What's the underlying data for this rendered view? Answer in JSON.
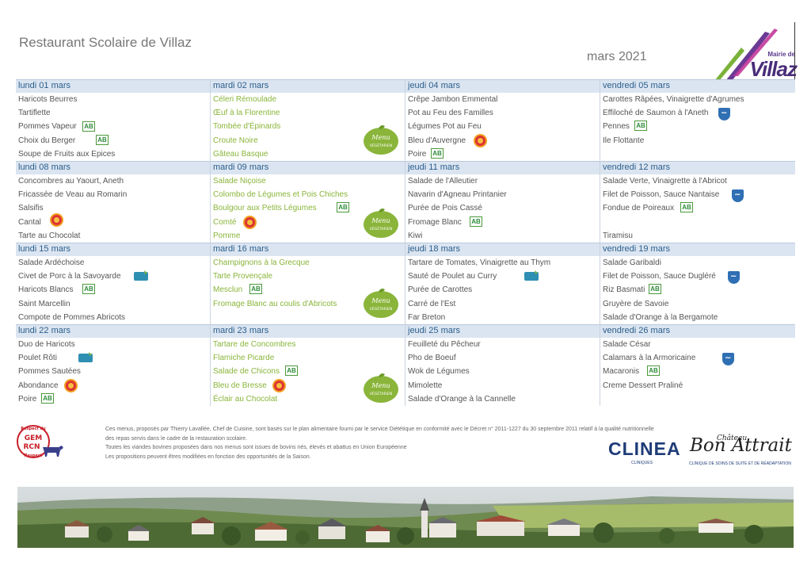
{
  "header": {
    "title": "Restaurant Scolaire de Villaz",
    "month": "mars 2021",
    "logo_mairie": "Mairie de",
    "logo_villaz": "Villaz"
  },
  "weeks": [
    {
      "days": [
        {
          "day": "lundi 01 mars",
          "items": [
            "Haricots Beurres",
            "Tartiflette",
            "Pommes Vapeur",
            "Choix du Berger",
            "Soupe de Fruits aux Epices"
          ]
        },
        {
          "day": "mardi 02 mars",
          "items": [
            "Céleri Rémoulade",
            "Œuf à la Florentine",
            "Tombée d'Épinards",
            "Croute Noire",
            "Gâteau Basque"
          ]
        },
        {
          "day": "jeudi 04 mars",
          "items": [
            "Crêpe Jambon Emmental",
            "Pot au Feu des Familles",
            "Légumes Pot au Feu",
            "Bleu d'Auvergne",
            "Poire"
          ]
        },
        {
          "day": "vendredi 05 mars",
          "items": [
            "Carottes Râpées, Vinaigrette d'Agrumes",
            "Effiloché de Saumon à l'Aneth",
            "Pennes",
            "Ile Flottante",
            ""
          ]
        }
      ]
    },
    {
      "days": [
        {
          "day": "lundi 08 mars",
          "items": [
            "Concombres au Yaourt, Aneth",
            "Fricassée de Veau au Romarin",
            "Salsifis",
            "Cantal",
            "Tarte au Chocolat"
          ]
        },
        {
          "day": "mardi 09 mars",
          "items": [
            "Salade Niçoise",
            "Colombo de Légumes et Pois Chiches",
            "Boulgour aux Petits Légumes",
            "Comté",
            "Pomme"
          ]
        },
        {
          "day": "jeudi 11 mars",
          "items": [
            "Salade de l'Alleutier",
            "Navarin d'Agneau Printanier",
            "Purée de Pois Cassé",
            "Fromage Blanc",
            "Kiwi"
          ]
        },
        {
          "day": "vendredi 12 mars",
          "items": [
            "Salade Verte, Vinaigrette à l'Abricot",
            "Filet de Poisson, Sauce Nantaise",
            "Fondue de Poireaux",
            "",
            "Tiramisu"
          ]
        }
      ]
    },
    {
      "days": [
        {
          "day": "lundi 15 mars",
          "items": [
            "Salade Ardéchoise",
            "Civet de Porc à la Savoyarde",
            "Haricots Blancs",
            "Saint Marcellin",
            "Compote de Pommes Abricots"
          ]
        },
        {
          "day": "mardi 16 mars",
          "items": [
            "Champignons à la Grecque",
            "Tarte Provençale",
            "Mesclun",
            "Fromage Blanc au coulis d'Abricots",
            ""
          ]
        },
        {
          "day": "jeudi 18 mars",
          "items": [
            "Tartare de Tomates, Vinaigrette au Thym",
            "Sauté de Poulet au Curry",
            "Purée de Carottes",
            "Carré de l'Est",
            "Far Breton"
          ]
        },
        {
          "day": "vendredi 19 mars",
          "items": [
            "Salade Garibaldi",
            "Filet de Poisson, Sauce Dugléré",
            "Riz Basmati",
            "Gruyère de Savoie",
            "Salade d'Orange à la Bergamote"
          ]
        }
      ]
    },
    {
      "days": [
        {
          "day": "lundi 22 mars",
          "items": [
            "Duo de Haricots",
            "Poulet Rôti",
            "Pommes Sautées",
            "Abondance",
            "Poire"
          ]
        },
        {
          "day": "mardi 23 mars",
          "items": [
            "Tartare de Concombres",
            "Flamiche Picarde",
            "Salade de Chicons",
            "Bleu de Bresse",
            "Éclair au Chocolat"
          ]
        },
        {
          "day": "jeudi 25 mars",
          "items": [
            "Feuilleté du Pêcheur",
            "Pho de Boeuf",
            "Wok de Légumes",
            "Mimolette",
            "Salade d'Orange à la Cannelle"
          ]
        },
        {
          "day": "vendredi 26 mars",
          "items": [
            "Salade César",
            "Calamars à la Armoricaine",
            "Macaronis",
            "Creme Dessert Praliné",
            ""
          ]
        }
      ]
    }
  ],
  "badges": {
    "bio": "AB",
    "veg_line1": "Menu",
    "veg_line2": "VÉGÉTARIEN"
  },
  "footnote": {
    "line1": "Ces menus, proposés par Thierry Lavallée, Chef de Cuisine, sont basés sur le plan alimentaire fourni par le service Diététique en conformité avec le Décret n° 2011-1227 du 30 septembre 2011 relatif à la qualité nutritionnelle",
    "line2": "des repas servis dans le cadre de la restauration scolaire.",
    "line3": "Toutes les viandes bovines proposées dans nos menus sont issues de bovins nés, élevés et abattus en Union Européenne",
    "line4": "Les propositions peuvent êtres modifiées en fonction des opportunités de la Saison."
  },
  "logos": {
    "gem_top": "Respect du",
    "gem_mid1": "GEM",
    "gem_mid2": "RCN",
    "gem_bottom": "Respect",
    "clinea": "CLINEA",
    "clinea_sub": "CLINIQUES",
    "chateau_small": "Château",
    "chateau": "Bon Attrait",
    "chateau_sub": "CLINIQUE DE SOINS DE SUITE ET DE RÉADAPTATION"
  },
  "colors": {
    "header_bg": "#dbe5f1",
    "day_text": "#2b5e8c",
    "veg_text": "#8ab53a",
    "std_text": "#555555"
  }
}
